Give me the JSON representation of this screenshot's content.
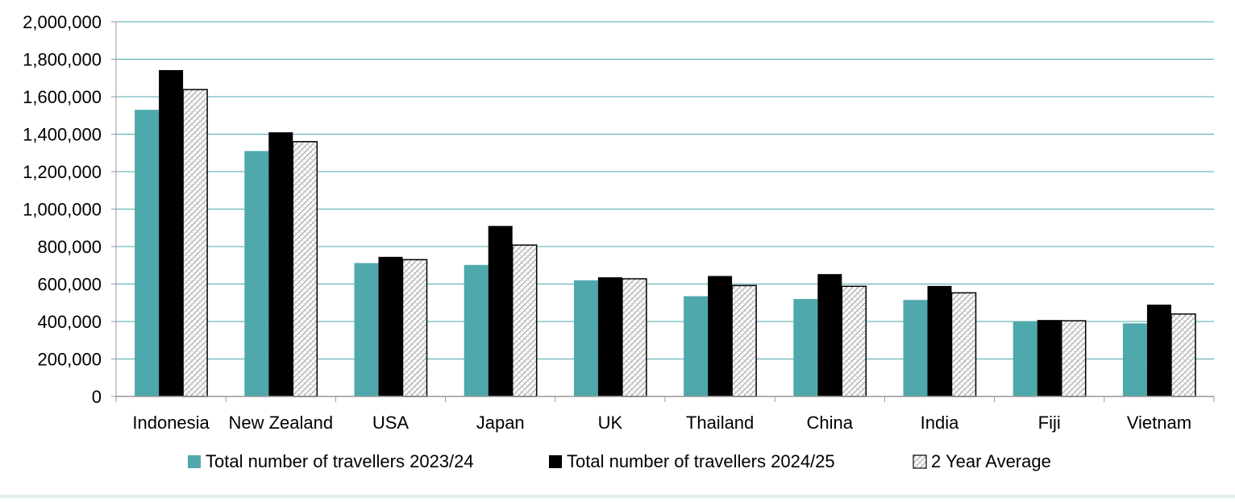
{
  "chart_data": {
    "type": "bar",
    "title": "",
    "xlabel": "",
    "ylabel": "",
    "ylim": [
      0,
      2000000
    ],
    "y_ticks": [
      0,
      200000,
      400000,
      600000,
      800000,
      1000000,
      1200000,
      1400000,
      1600000,
      1800000,
      2000000
    ],
    "y_tick_labels": [
      "0",
      "200,000",
      "400,000",
      "600,000",
      "800,000",
      "1,000,000",
      "1,200,000",
      "1,400,000",
      "1,600,000",
      "1,800,000",
      "2,000,000"
    ],
    "grid": true,
    "legend_position": "bottom",
    "categories": [
      "Indonesia",
      "New Zealand",
      "USA",
      "Japan",
      "UK",
      "Thailand",
      "China",
      "India",
      "Fiji",
      "Vietnam"
    ],
    "series": [
      {
        "name": "Total number of travellers 2023/24",
        "color": "#4fa8ab",
        "pattern": "solid",
        "values": [
          1530000,
          1310000,
          712000,
          702000,
          620000,
          535000,
          520000,
          515000,
          398000,
          390000
        ]
      },
      {
        "name": "Total number of travellers 2024/25",
        "color": "#000000",
        "pattern": "solid",
        "values": [
          1742000,
          1410000,
          745000,
          910000,
          636000,
          643000,
          653000,
          590000,
          408000,
          490000
        ]
      },
      {
        "name": "2 Year Average",
        "color": "#ffffff",
        "pattern": "crosshatch",
        "values": [
          1638000,
          1360000,
          730000,
          808000,
          628000,
          592000,
          588000,
          553000,
          404000,
          440000
        ]
      }
    ],
    "colors": {
      "grid": "#4fa8ab",
      "axis": "#999999"
    }
  }
}
